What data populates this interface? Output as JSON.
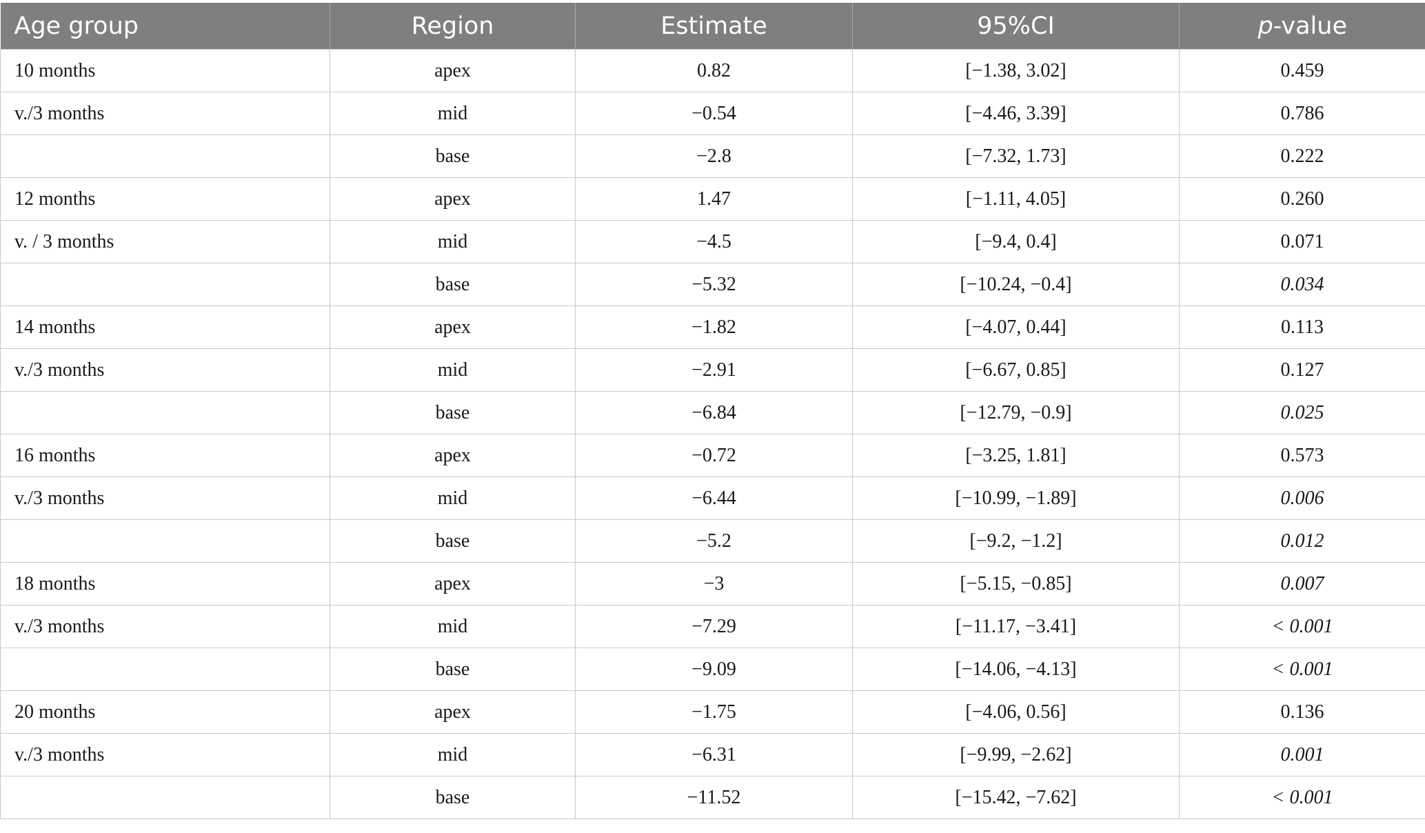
{
  "table": {
    "headers": {
      "age_group": "Age group",
      "region": "Region",
      "estimate": "Estimate",
      "ci": "95%CI",
      "p_prefix": "p",
      "p_suffix": "-value"
    },
    "rows": [
      {
        "age": "10 months",
        "region": "apex",
        "estimate": "0.82",
        "ci": "[−1.38, 3.02]",
        "p": "0.459",
        "p_italic": false
      },
      {
        "age": "v./3 months",
        "region": "mid",
        "estimate": "−0.54",
        "ci": "[−4.46, 3.39]",
        "p": "0.786",
        "p_italic": false
      },
      {
        "age": "",
        "region": "base",
        "estimate": "−2.8",
        "ci": "[−7.32, 1.73]",
        "p": "0.222",
        "p_italic": false
      },
      {
        "age": "12 months",
        "region": "apex",
        "estimate": "1.47",
        "ci": "[−1.11, 4.05]",
        "p": "0.260",
        "p_italic": false
      },
      {
        "age": "v. / 3 months",
        "region": "mid",
        "estimate": "−4.5",
        "ci": "[−9.4, 0.4]",
        "p": "0.071",
        "p_italic": false
      },
      {
        "age": "",
        "region": "base",
        "estimate": "−5.32",
        "ci": "[−10.24, −0.4]",
        "p": "0.034",
        "p_italic": true
      },
      {
        "age": "14 months",
        "region": "apex",
        "estimate": "−1.82",
        "ci": "[−4.07, 0.44]",
        "p": "0.113",
        "p_italic": false
      },
      {
        "age": "v./3 months",
        "region": "mid",
        "estimate": "−2.91",
        "ci": "[−6.67, 0.85]",
        "p": "0.127",
        "p_italic": false
      },
      {
        "age": "",
        "region": "base",
        "estimate": "−6.84",
        "ci": "[−12.79, −0.9]",
        "p": "0.025",
        "p_italic": true
      },
      {
        "age": "16 months",
        "region": "apex",
        "estimate": "−0.72",
        "ci": "[−3.25, 1.81]",
        "p": "0.573",
        "p_italic": false
      },
      {
        "age": "v./3 months",
        "region": "mid",
        "estimate": "−6.44",
        "ci": "[−10.99, −1.89]",
        "p": "0.006",
        "p_italic": true
      },
      {
        "age": "",
        "region": "base",
        "estimate": "−5.2",
        "ci": "[−9.2, −1.2]",
        "p": "0.012",
        "p_italic": true
      },
      {
        "age": "18 months",
        "region": "apex",
        "estimate": "−3",
        "ci": "[−5.15, −0.85]",
        "p": "0.007",
        "p_italic": true
      },
      {
        "age": "v./3 months",
        "region": "mid",
        "estimate": "−7.29",
        "ci": "[−11.17, −3.41]",
        "p": "< 0.001",
        "p_italic": true
      },
      {
        "age": "",
        "region": "base",
        "estimate": "−9.09",
        "ci": "[−14.06, −4.13]",
        "p": "< 0.001",
        "p_italic": true
      },
      {
        "age": "20 months",
        "region": "apex",
        "estimate": "−1.75",
        "ci": "[−4.06, 0.56]",
        "p": "0.136",
        "p_italic": false
      },
      {
        "age": "v./3 months",
        "region": "mid",
        "estimate": "−6.31",
        "ci": "[−9.99, −2.62]",
        "p": "0.001",
        "p_italic": true
      },
      {
        "age": "",
        "region": "base",
        "estimate": "−11.52",
        "ci": "[−15.42, −7.62]",
        "p": "< 0.001",
        "p_italic": true
      }
    ]
  }
}
